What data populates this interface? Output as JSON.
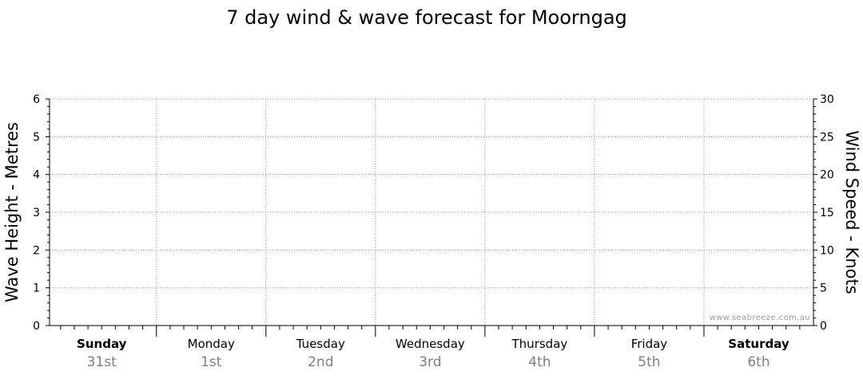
{
  "chart_data": {
    "type": "line",
    "title": "7 day wind & wave forecast for Moorngag",
    "ylabel_left": "Wave Height - Metres",
    "ylabel_right": "Wind Speed - Knots",
    "ylim_left": [
      0,
      6
    ],
    "ylim_right": [
      0,
      30
    ],
    "yticks_left": [
      "0",
      "1",
      "2",
      "3",
      "4",
      "5",
      "6"
    ],
    "yticks_right": [
      "0",
      "5",
      "10",
      "15",
      "20",
      "25",
      "30"
    ],
    "grid": true,
    "days": [
      {
        "name": "Sunday",
        "date": "31st",
        "bold": true
      },
      {
        "name": "Monday",
        "date": "1st",
        "bold": false
      },
      {
        "name": "Tuesday",
        "date": "2nd",
        "bold": false
      },
      {
        "name": "Wednesday",
        "date": "3rd",
        "bold": false
      },
      {
        "name": "Thursday",
        "date": "4th",
        "bold": false
      },
      {
        "name": "Friday",
        "date": "5th",
        "bold": false
      },
      {
        "name": "Saturday",
        "date": "6th",
        "bold": true
      }
    ],
    "series": [],
    "watermark": "www.seabreeze.com.au"
  }
}
